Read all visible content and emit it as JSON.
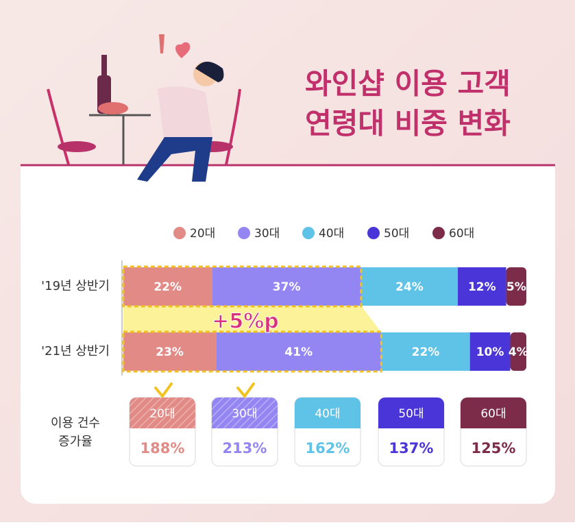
{
  "chart_data": {
    "type": "stacked-bar",
    "title_lines": [
      "와인샵 이용 고객",
      "연령대 비중 변화"
    ],
    "categories": [
      "'19년 상반기",
      "'21년 상반기"
    ],
    "series": [
      {
        "name": "20대",
        "color": "#e28a86",
        "values": [
          22,
          23
        ],
        "value_labels": [
          "22%",
          "23%"
        ]
      },
      {
        "name": "30대",
        "color": "#9385f2",
        "values": [
          37,
          41
        ],
        "value_labels": [
          "37%",
          "41%"
        ]
      },
      {
        "name": "40대",
        "color": "#5ec3e6",
        "values": [
          24,
          22
        ],
        "value_labels": [
          "24%",
          "22%"
        ]
      },
      {
        "name": "50대",
        "color": "#4a35d9",
        "values": [
          12,
          10
        ],
        "value_labels": [
          "12%",
          "10%"
        ]
      },
      {
        "name": "60대",
        "color": "#7c2b49",
        "values": [
          5,
          4
        ],
        "value_labels": [
          "5%",
          "4%"
        ]
      }
    ],
    "xlim": [
      0,
      100
    ],
    "annotation": "+5%p"
  },
  "growth": {
    "label_lines": [
      "이용 건수",
      "증가율"
    ],
    "categories": [
      "20대",
      "30대",
      "40대",
      "50대",
      "60대"
    ],
    "value_labels": [
      "188%",
      "213%",
      "162%",
      "137%",
      "125%"
    ],
    "highlighted": [
      true,
      true,
      false,
      false,
      false
    ]
  }
}
